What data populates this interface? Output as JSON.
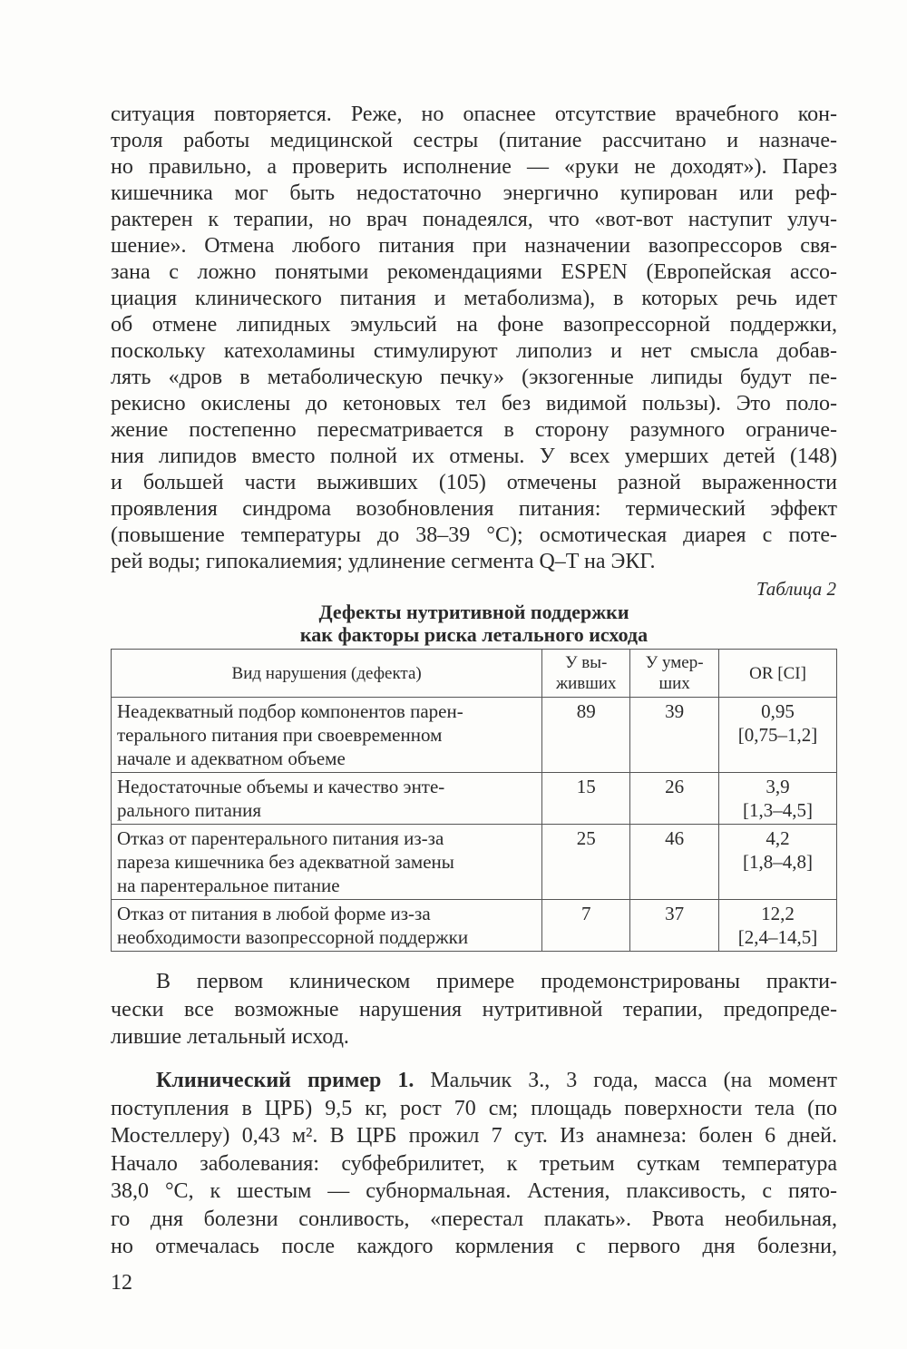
{
  "paragraph1": [
    "ситуация повторяется. Реже, но опаснее отсутствие врачебного кон-",
    "троля работы медицинской сестры (питание рассчитано и назначе-",
    "но правильно, а проверить исполнение — «руки не доходят»). Парез",
    "кишечника мог быть недостаточно энергично купирован или реф-",
    "рактерен к терапии, но врач понадеялся, что «вот-вот наступит улуч-",
    "шение». Отмена любого питания при назначении вазопрессоров свя-",
    "зана с ложно понятыми рекомендациями ESPEN (Европейская ассо-",
    "циация клинического питания и метаболизма), в которых речь идет",
    "об отмене липидных эмульсий на фоне вазопрессорной поддержки,",
    "поскольку катехоламины стимулируют липолиз и нет смысла добав-",
    "лять «дров в метаболическую печку» (экзогенные липиды будут пе-",
    "рекисно окислены до кетоновых тел без видимой пользы). Это поло-",
    "жение постепенно пересматривается в сторону разумного ограниче-",
    "ния липидов вместо полной их отмены. У всех умерших детей (148)",
    "и большей части выживших (105) отмечены разной выраженности",
    "проявления синдрома возобновления питания: термический эффект",
    "(повышение температуры до 38–39 °С); осмотическая диарея с поте-",
    "рей воды; гипокалиемия; удлинение сегмента Q–T на ЭКГ."
  ],
  "table": {
    "caption": "Таблица 2",
    "title_line1": "Дефекты нутритивной поддержки",
    "title_line2": "как факторы риска летального исхода",
    "headers": {
      "defect": "Вид нарушения (дефекта)",
      "survived_1": "У вы-",
      "survived_2": "живших",
      "died_1": "У умер-",
      "died_2": "ших",
      "or": "OR [CI]"
    },
    "rows": [
      {
        "defect": [
          "Неадекватный подбор компонентов парен-",
          "терального питания при своевременном",
          "начале и адекватном объеме"
        ],
        "survived": "89",
        "died": "39",
        "or": "0,95",
        "ci": "[0,75–1,2]"
      },
      {
        "defect": [
          "Недостаточные объемы и качество энте-",
          "рального питания"
        ],
        "survived": "15",
        "died": "26",
        "or": "3,9",
        "ci": "[1,3–4,5]"
      },
      {
        "defect": [
          "Отказ от парентерального питания из-за",
          "пареза кишечника без адекватной замены",
          "на парентеральное питание"
        ],
        "survived": "25",
        "died": "46",
        "or": "4,2",
        "ci": "[1,8–4,8]"
      },
      {
        "defect": [
          "Отказ от питания в любой форме из-за",
          "необходимости вазопрессорной поддержки"
        ],
        "survived": "7",
        "died": "37",
        "or": "12,2",
        "ci": "[2,4–14,5]"
      }
    ]
  },
  "paragraph2": [
    "В первом клиническом примере продемонстрированы практи-",
    "чески все возможные нарушения нутритивной терапии, предопреде-",
    "лившие летальный исход."
  ],
  "paragraph3": {
    "lead_bold": "Клинический пример 1.",
    "lead_rest": " Мальчик З., 3 года, масса (на момент",
    "lines": [
      "поступления в ЦРБ) 9,5 кг, рост 70 см; площадь поверхности тела (по",
      "Мостеллеру) 0,43 м². В ЦРБ прожил 7 сут. Из анамнеза: болен 6 дней.",
      "Начало заболевания: субфебрилитет, к третьим суткам температура",
      "38,0 °С, к шестым — субнормальная. Астения, плаксивость, с пято-",
      "го дня болезни сонливость, «перестал плакать». Рвота необильная,",
      "но отмечалась после каждого кормления с первого дня болезни,"
    ]
  },
  "page_number": "12"
}
